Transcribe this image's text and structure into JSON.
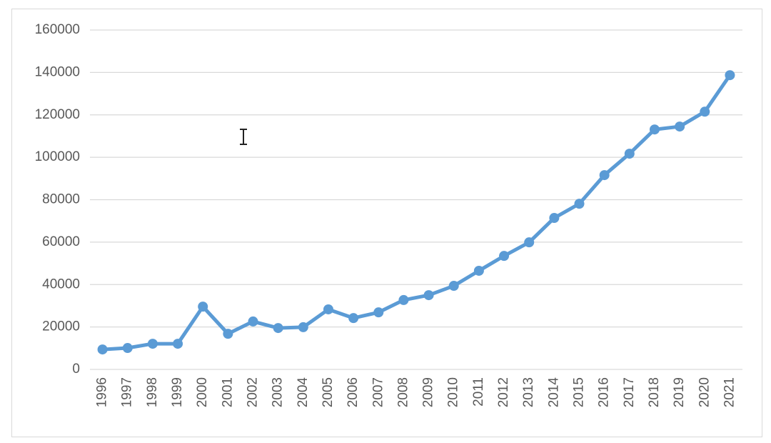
{
  "chart_data": {
    "type": "line",
    "categories": [
      "1996",
      "1997",
      "1998",
      "1999",
      "2000",
      "2001",
      "2002",
      "2003",
      "2004",
      "2005",
      "2006",
      "2007",
      "2008",
      "2009",
      "2010",
      "2011",
      "2012",
      "2013",
      "2014",
      "2015",
      "2016",
      "2017",
      "2018",
      "2019",
      "2020",
      "2021"
    ],
    "values": [
      9400,
      10100,
      12100,
      12100,
      29600,
      16800,
      22600,
      19500,
      19900,
      28300,
      24200,
      26900,
      32700,
      35000,
      39400,
      46500,
      53500,
      59900,
      71400,
      78100,
      91600,
      101700,
      113100,
      114500,
      121500,
      138700
    ],
    "color": "#5b9bd5",
    "ylim": [
      0,
      160000
    ],
    "yticks": [
      0,
      20000,
      40000,
      60000,
      80000,
      100000,
      120000,
      140000,
      160000
    ],
    "grid": true
  }
}
